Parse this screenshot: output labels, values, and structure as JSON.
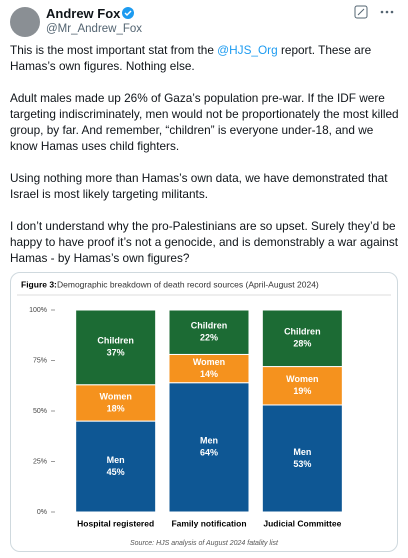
{
  "header": {
    "name": "Andrew Fox",
    "handle": "@Mr_Andrew_Fox"
  },
  "post": {
    "paragraphs": [
      [
        "This is the most important stat from the ",
        "@HJS_Org",
        " report. These are Hamas’s own figures. Nothing else."
      ],
      [
        "Adult males made up 26% of Gaza’s population pre-war. If the IDF were targeting indiscriminately, men would not be proportionately the most killed group, by far. And remember, “children” is everyone under-18, and we know Hamas uses child fighters."
      ],
      [
        "Using nothing more than Hamas’s own data, we have demonstrated that Israel is most likely targeting militants."
      ],
      [
        "I don’t understand why the pro-Palestinians are so upset. Surely they’d be happy to have proof it’s not a genocide, and is demonstrably a war against Hamas - by Hamas’s own figures?"
      ]
    ]
  },
  "chart_data": {
    "type": "stacked_bar",
    "title_prefix": "Figure 3:",
    "title": "Demographic breakdown of death record sources (April-August 2024)",
    "source": "Source: HJS analysis of August 2024 fatality list",
    "categories": [
      "Hospital registered",
      "Family notification",
      "Judicial Committee"
    ],
    "series": [
      {
        "name": "Men",
        "color": "#0e5794",
        "values": [
          45,
          64,
          53
        ],
        "value_labels": [
          "45%",
          "64%",
          "53%"
        ]
      },
      {
        "name": "Women",
        "color": "#f5921e",
        "values": [
          18,
          14,
          19
        ],
        "value_labels": [
          "18%",
          "14%",
          "19%"
        ]
      },
      {
        "name": "Children",
        "color": "#1c6b34",
        "values": [
          37,
          22,
          28
        ],
        "value_labels": [
          "37%",
          "22%",
          "28%"
        ]
      }
    ],
    "ylim": [
      0,
      100
    ],
    "yticks": [
      {
        "value": 0,
        "label": "0%"
      },
      {
        "value": 25,
        "label": "25%"
      },
      {
        "value": 50,
        "label": "50%"
      },
      {
        "value": 75,
        "label": "75%"
      },
      {
        "value": 100,
        "label": "100%"
      }
    ]
  }
}
